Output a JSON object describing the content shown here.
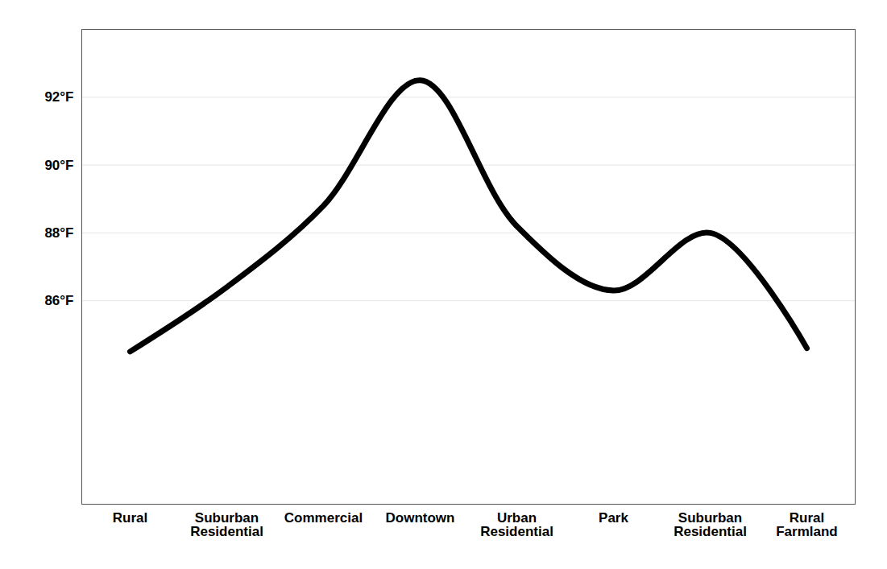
{
  "chart_data": {
    "type": "line",
    "categories": [
      "Rural",
      "Suburban Residential",
      "Commercial",
      "Downtown",
      "Urban Residential",
      "Park",
      "Suburban Residential",
      "Rural Farmland"
    ],
    "values": [
      84.5,
      86.4,
      88.8,
      92.5,
      88.2,
      86.3,
      88.0,
      84.6
    ],
    "color": "#000000",
    "ylim": [
      80,
      94
    ],
    "yticks": [
      {
        "value": 86,
        "label": "86°F"
      },
      {
        "value": 88,
        "label": "88°F"
      },
      {
        "value": 90,
        "label": "90°F"
      },
      {
        "value": 92,
        "label": "92°F"
      }
    ],
    "grid": true
  }
}
